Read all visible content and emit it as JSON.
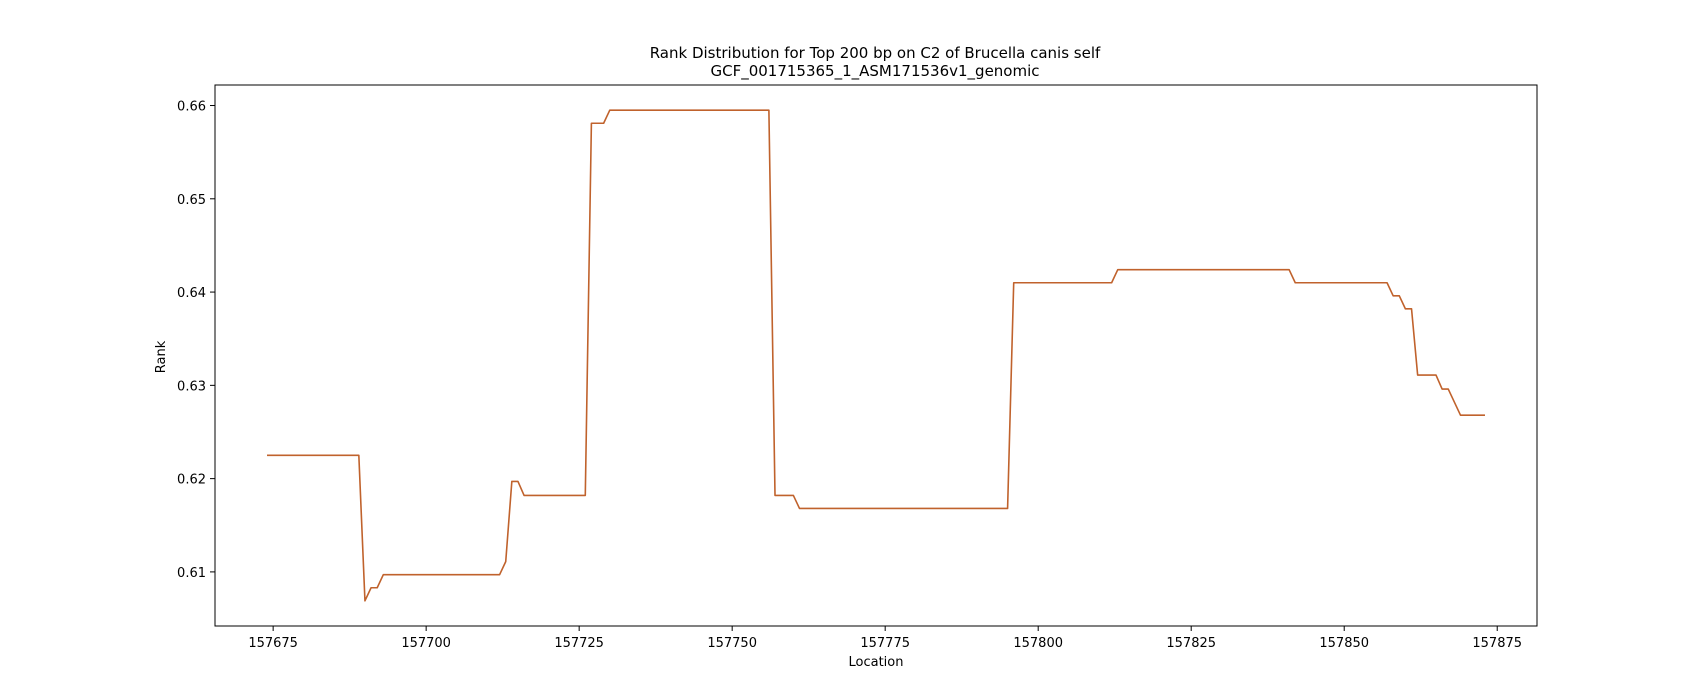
{
  "chart_data": {
    "type": "line",
    "title": "Rank Distribution for Top 200 bp on C2 of Brucella canis self",
    "subtitle": "GCF_001715365_1_ASM171536v1_genomic",
    "xlabel": "Location",
    "ylabel": "Rank",
    "xlim": [
      157665.5,
      157881.5
    ],
    "ylim": [
      0.6042,
      0.6622
    ],
    "xticks": [
      157675,
      157700,
      157725,
      157750,
      157775,
      157800,
      157825,
      157850,
      157875
    ],
    "yticks": [
      0.61,
      0.62,
      0.63,
      0.64,
      0.65,
      0.66
    ],
    "grid": false,
    "series": [
      {
        "color": "#c0622c",
        "points": [
          [
            157674,
            0.6225
          ],
          [
            157689,
            0.6225
          ],
          [
            157690,
            0.6069
          ],
          [
            157691,
            0.6083
          ],
          [
            157692,
            0.6083
          ],
          [
            157693,
            0.6097
          ],
          [
            157712,
            0.6097
          ],
          [
            157713,
            0.6111
          ],
          [
            157714,
            0.6197
          ],
          [
            157715,
            0.6197
          ],
          [
            157716,
            0.6182
          ],
          [
            157726,
            0.6182
          ],
          [
            157727,
            0.6581
          ],
          [
            157729,
            0.6581
          ],
          [
            157730,
            0.6595
          ],
          [
            157756,
            0.6595
          ],
          [
            157757,
            0.6182
          ],
          [
            157760,
            0.6182
          ],
          [
            157761,
            0.6168
          ],
          [
            157795,
            0.6168
          ],
          [
            157796,
            0.641
          ],
          [
            157812,
            0.641
          ],
          [
            157813,
            0.6424
          ],
          [
            157841,
            0.6424
          ],
          [
            157842,
            0.641
          ],
          [
            157857,
            0.641
          ],
          [
            157858,
            0.6396
          ],
          [
            157859,
            0.6396
          ],
          [
            157860,
            0.6382
          ],
          [
            157861,
            0.6382
          ],
          [
            157862,
            0.6311
          ],
          [
            157865,
            0.6311
          ],
          [
            157866,
            0.6296
          ],
          [
            157867,
            0.6296
          ],
          [
            157869,
            0.6268
          ],
          [
            157873,
            0.6268
          ]
        ]
      }
    ]
  }
}
